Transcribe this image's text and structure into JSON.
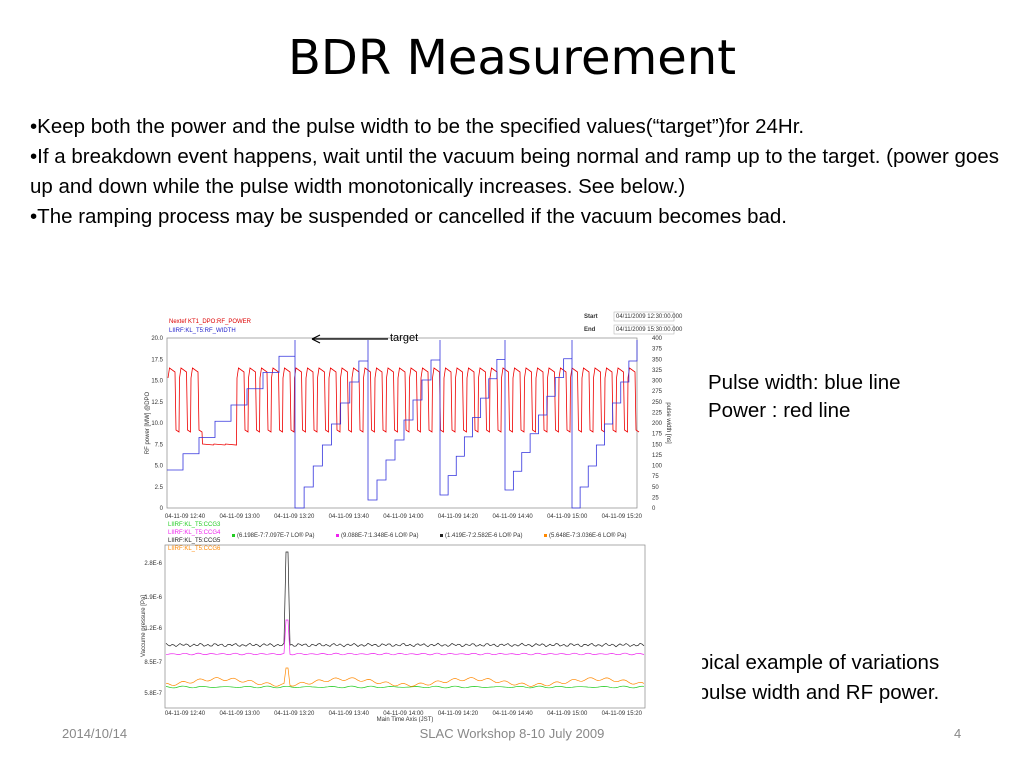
{
  "header": {
    "title": "BDR Measurement"
  },
  "bullets": [
    "•Keep both the power and the pulse width to be the specified values(“target”)for 24Hr.",
    "•If  a breakdown event happens, wait until the vacuum being normal and ramp up to the target. (power goes up and down while the pulse width monotonically increases. See below.)",
    "•The ramping process may be suspended or cancelled if the vacuum becomes bad."
  ],
  "notes": {
    "legend": [
      "Pulse width: blue line",
      "Power : red line"
    ],
    "caption": [
      "Typical example of variations",
      "in pulse width and RF power."
    ]
  },
  "top_plot": {
    "series": [
      "Nextef KT1_DPO:RF_POWER",
      "LIIRF:KL_T5:RF_WIDTH"
    ],
    "start_label": "Start",
    "start": "04/11/2009 12:30:00.000",
    "end_label": "End",
    "end": "04/11/2009 15:30:00.000",
    "annotation": "target",
    "y_label": "RF power [MW] @DPO",
    "y2_label": "pulse width [ns]",
    "yticks": [
      "0",
      "2.5",
      "5.0",
      "7.5",
      "10.0",
      "12.5",
      "15.0",
      "17.5",
      "20.0"
    ],
    "y2ticks": [
      "0",
      "25",
      "50",
      "75",
      "100",
      "125",
      "150",
      "175",
      "200",
      "225",
      "250",
      "275",
      "300",
      "325",
      "350",
      "375",
      "400"
    ],
    "xticks": [
      "04-11-09 12:40",
      "04-11-09 13:00",
      "04-11-09 13:20",
      "04-11-09 13:40",
      "04-11-09 14:00",
      "04-11-09 14:20",
      "04-11-09 14:40",
      "04-11-09 15:00",
      "04-11-09 15:20"
    ]
  },
  "bottom_plot": {
    "series": [
      "LIIRF:KL_T5:CCG3",
      "LIIRF:KL_T5:CCG4",
      "LIIRF:KL_T5:CCG5",
      "LIIRF:KL_T5:CCG6"
    ],
    "ranges": [
      "(6.198E-7:7.097E-7 LO® Pa)",
      "(9.088E-7:1.348E-6 LO® Pa)",
      "(1.419E-7:2.582E-6 LO® Pa)",
      "(5.648E-7:3.036E-6 LO® Pa)"
    ],
    "y_label": "Vaccume pressure [Pa]",
    "x_label": "Main Time Axis (JST)",
    "yticks": [
      "5.8E-7",
      "8.5E-7",
      "1.2E-6",
      "1.9E-6",
      "2.8E-6"
    ],
    "xticks": [
      "04-11-09 12:40",
      "04-11-09 13:00",
      "04-11-09 13:20",
      "04-11-09 13:40",
      "04-11-09 14:00",
      "04-11-09 14:20",
      "04-11-09 14:40",
      "04-11-09 15:00",
      "04-11-09 15:20"
    ]
  },
  "footer": {
    "date": "2014/10/14",
    "event": "SLAC Workshop 8-10 July 2009",
    "page": "4"
  }
}
